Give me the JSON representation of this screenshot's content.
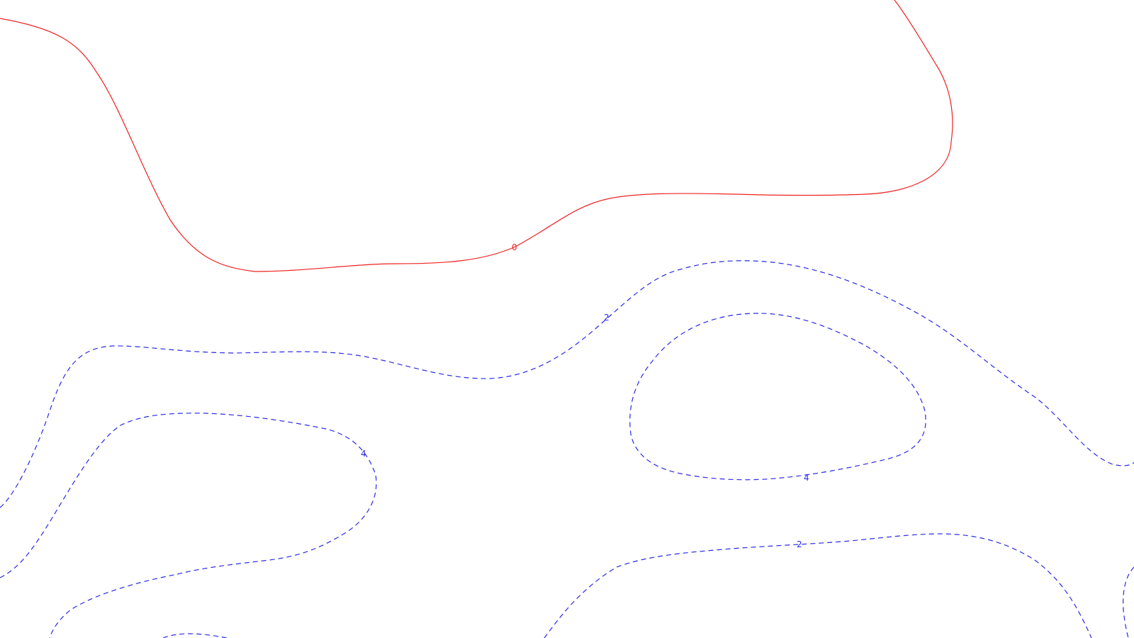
{
  "contours": {
    "zero_label": "0",
    "neg2_label_a": "2",
    "neg4_label_a": "4",
    "neg4_label_b": "4",
    "neg2_label_b": "2"
  },
  "colors": {
    "zero": "#ee2222",
    "negative": "#2a2ae6"
  }
}
